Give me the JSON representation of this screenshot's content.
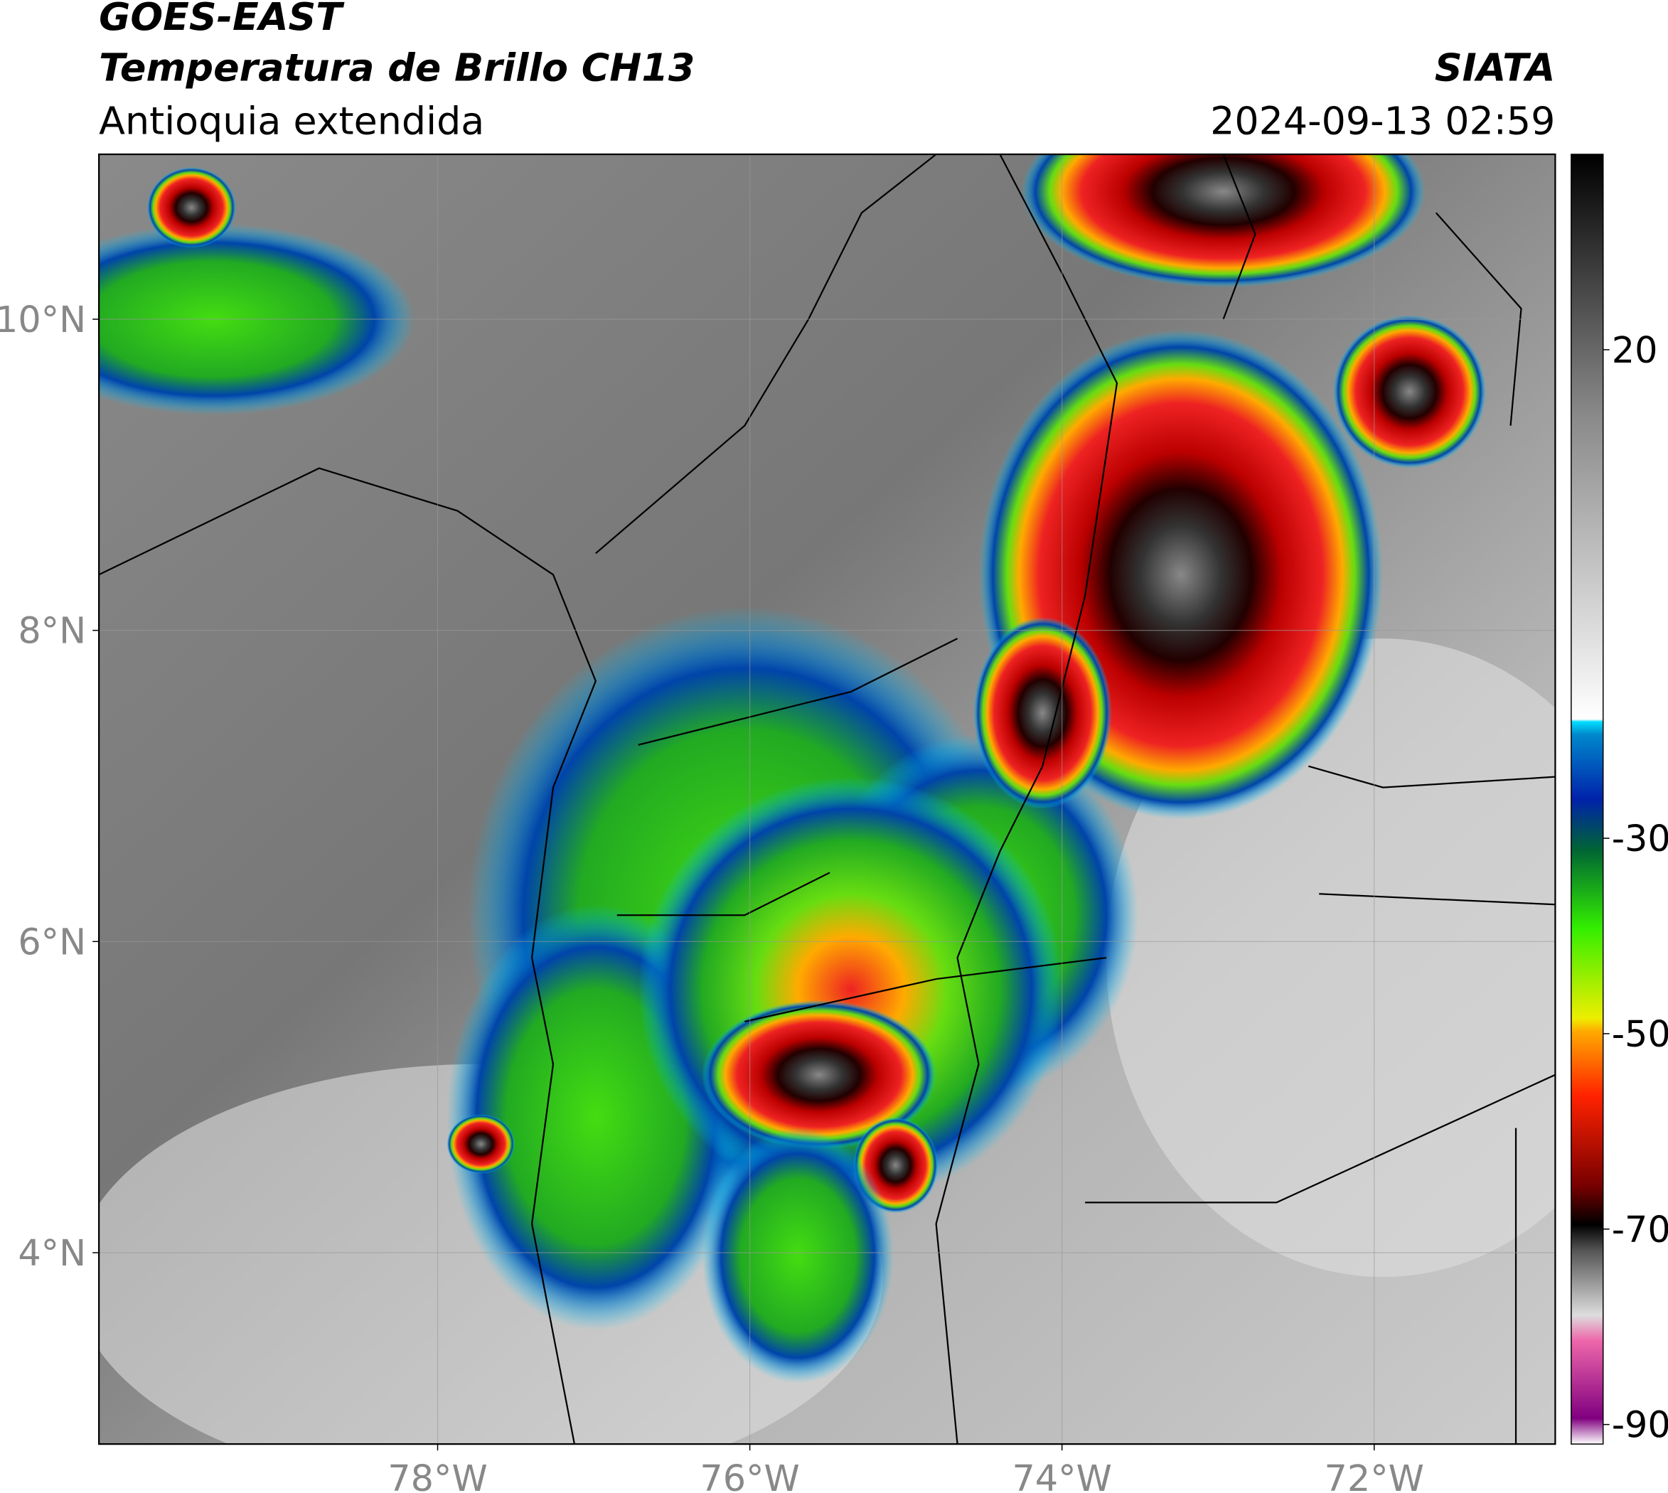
{
  "header": {
    "title": "GOES-EAST",
    "subtitle": "Temperatura de Brillo CH13",
    "region": "Antioquia extendida",
    "source": "SIATA",
    "datetime": "2024-09-13 02:59"
  },
  "map": {
    "xlim": [
      -80.17,
      -70.84
    ],
    "ylim": [
      2.77,
      11.06
    ],
    "xticks": [
      {
        "value": -78,
        "label": "78°W"
      },
      {
        "value": -76,
        "label": "76°W"
      },
      {
        "value": -74,
        "label": "74°W"
      },
      {
        "value": -72,
        "label": "72°W"
      }
    ],
    "yticks": [
      {
        "value": 10,
        "label": "10°N"
      },
      {
        "value": 8,
        "label": "8°N"
      },
      {
        "value": 6,
        "label": "6°N"
      },
      {
        "value": 4,
        "label": "4°N"
      }
    ],
    "grid": true
  },
  "colorbar": {
    "clim": [
      -92,
      40
    ],
    "ticks": [
      20,
      -30,
      -50,
      -70,
      -90
    ]
  }
}
